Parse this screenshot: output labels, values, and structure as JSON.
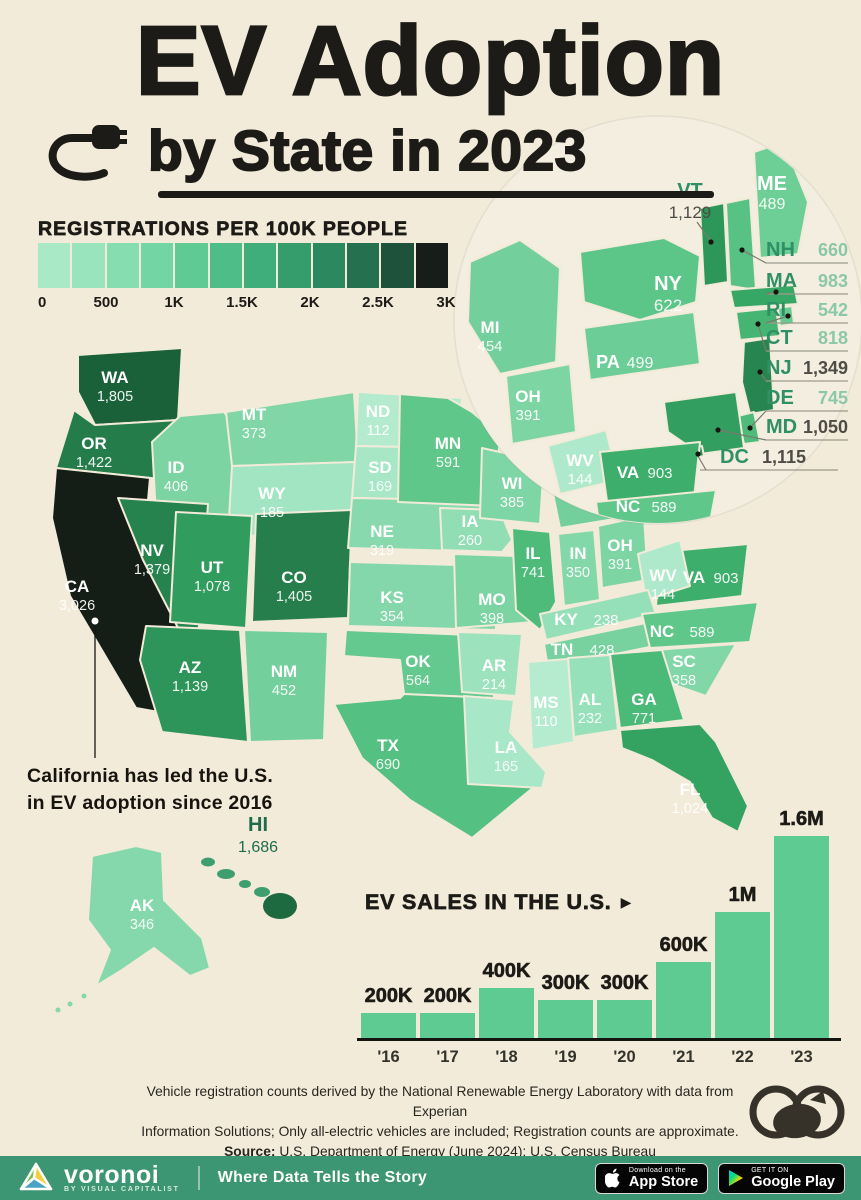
{
  "title": {
    "line1": "EV Adoption",
    "line2": "by State in 2023"
  },
  "legend": {
    "title": "REGISTRATIONS PER 100K PEOPLE",
    "ticks": [
      "0",
      "500",
      "1K",
      "1.5K",
      "2K",
      "2.5K",
      "3K"
    ],
    "colors": [
      "#a9e9c6",
      "#99e4bd",
      "#86ddb0",
      "#72d5a3",
      "#5fca94",
      "#4ebd87",
      "#40ae7a",
      "#359c6c",
      "#2c885e",
      "#25704e",
      "#1e523b",
      "#171e1a"
    ]
  },
  "states": {
    "WA": {
      "abbr": "WA",
      "value": "1,805",
      "color": "#1a6038"
    },
    "OR": {
      "abbr": "OR",
      "value": "1,422",
      "color": "#247c4b"
    },
    "CA": {
      "abbr": "CA",
      "value": "3,026",
      "color": "#151d17"
    },
    "NV": {
      "abbr": "NV",
      "value": "1,379",
      "color": "#26834e"
    },
    "ID": {
      "abbr": "ID",
      "value": "406",
      "color": "#7bd4a2"
    },
    "MT": {
      "abbr": "MT",
      "value": "373",
      "color": "#80d6a7"
    },
    "WY": {
      "abbr": "WY",
      "value": "185",
      "color": "#a2e5c2"
    },
    "UT": {
      "abbr": "UT",
      "value": "1,078",
      "color": "#309c5e"
    },
    "CO": {
      "abbr": "CO",
      "value": "1,405",
      "color": "#257e4c"
    },
    "AZ": {
      "abbr": "AZ",
      "value": "1,139",
      "color": "#2d9559"
    },
    "NM": {
      "abbr": "NM",
      "value": "452",
      "color": "#73d09c"
    },
    "ND": {
      "abbr": "ND",
      "value": "112",
      "color": "#b4ebcf"
    },
    "SD": {
      "abbr": "SD",
      "value": "169",
      "color": "#a7e7c6"
    },
    "NE": {
      "abbr": "NE",
      "value": "319",
      "color": "#88daae"
    },
    "KS": {
      "abbr": "KS",
      "value": "354",
      "color": "#83d7aa"
    },
    "OK": {
      "abbr": "OK",
      "value": "564",
      "color": "#63c98e"
    },
    "TX": {
      "abbr": "TX",
      "value": "690",
      "color": "#54c081"
    },
    "MN": {
      "abbr": "MN",
      "value": "591",
      "color": "#60c78b"
    },
    "IA": {
      "abbr": "IA",
      "value": "260",
      "color": "#91deb5"
    },
    "MO": {
      "abbr": "MO",
      "value": "398",
      "color": "#7cd4a3"
    },
    "AR": {
      "abbr": "AR",
      "value": "214",
      "color": "#9be2bd"
    },
    "LA": {
      "abbr": "LA",
      "value": "165",
      "color": "#a8e7c7"
    },
    "WI": {
      "abbr": "WI",
      "value": "385",
      "color": "#7ed5a5"
    },
    "IL": {
      "abbr": "IL",
      "value": "741",
      "color": "#4ebb7b"
    },
    "IN": {
      "abbr": "IN",
      "value": "350",
      "color": "#83d8aa"
    },
    "MI": {
      "abbr": "MI",
      "value": "454",
      "color": "#73d09c"
    },
    "OH": {
      "abbr": "OH",
      "value": "391",
      "color": "#7dd5a4"
    },
    "KY": {
      "abbr": "KY",
      "value": "238",
      "color": "#96e0b9"
    },
    "TN": {
      "abbr": "TN",
      "value": "428",
      "color": "#77d29f"
    },
    "WV": {
      "abbr": "WV",
      "value": "144",
      "color": "#afe9cb"
    },
    "VA": {
      "abbr": "VA",
      "value": "903",
      "color": "#3eae6c"
    },
    "NC": {
      "abbr": "NC",
      "value": "589",
      "color": "#60c78b"
    },
    "SC": {
      "abbr": "SC",
      "value": "358",
      "color": "#82d7a9"
    },
    "GA": {
      "abbr": "GA",
      "value": "771",
      "color": "#4bb978"
    },
    "AL": {
      "abbr": "AL",
      "value": "232",
      "color": "#97e1ba"
    },
    "MS": {
      "abbr": "MS",
      "value": "110",
      "color": "#b5ecd0"
    },
    "FL": {
      "abbr": "FL",
      "value": "1,024",
      "color": "#34a362"
    },
    "PA": {
      "abbr": "PA",
      "value": "499",
      "color": "#6ccd96"
    },
    "NY": {
      "abbr": "NY",
      "value": "622",
      "color": "#5cc588"
    },
    "VT": {
      "abbr": "VT",
      "value": "1,129",
      "color": "#2d9659"
    },
    "NH": {
      "abbr": "NH",
      "value": "660",
      "color": "#58c284"
    },
    "ME": {
      "abbr": "ME",
      "value": "489",
      "color": "#6dce96"
    },
    "MA": {
      "abbr": "MA",
      "value": "983",
      "color": "#37a765"
    },
    "RI": {
      "abbr": "RI",
      "value": "542",
      "color": "#66ca91"
    },
    "CT": {
      "abbr": "CT",
      "value": "818",
      "color": "#46b574"
    },
    "NJ": {
      "abbr": "NJ",
      "value": "1,349",
      "color": "#27854f"
    },
    "DE": {
      "abbr": "DE",
      "value": "745",
      "color": "#4ebb7b"
    },
    "MD": {
      "abbr": "MD",
      "value": "1,050",
      "color": "#329f60"
    },
    "DC": {
      "abbr": "DC",
      "value": "1,115",
      "color": "#2e975b"
    },
    "AK": {
      "abbr": "AK",
      "value": "346",
      "color": "#84d8ab"
    },
    "HI": {
      "abbr": "HI",
      "value": "1,686",
      "color": "#1d6940"
    }
  },
  "annotation": {
    "line1": "California has led the U.S.",
    "line2": "in EV adoption since 2016"
  },
  "chart": {
    "title": "EV SALES IN THE U.S.",
    "arrow": "▶",
    "bar_color": "#5ecb92",
    "bars": [
      {
        "year": "'16",
        "label": "200K",
        "value": 200000
      },
      {
        "year": "'17",
        "label": "200K",
        "value": 200000
      },
      {
        "year": "'18",
        "label": "400K",
        "value": 400000
      },
      {
        "year": "'19",
        "label": "300K",
        "value": 300000
      },
      {
        "year": "'20",
        "label": "300K",
        "value": 300000
      },
      {
        "year": "'21",
        "label": "600K",
        "value": 600000
      },
      {
        "year": "'22",
        "label": "1M",
        "value": 1000000
      },
      {
        "year": "'23",
        "label": "1.6M",
        "value": 1600000
      }
    ]
  },
  "chart_data": [
    {
      "type": "heatmap",
      "subtype": "us_state_choropleth",
      "title": "EV Adoption by State in 2023",
      "unit": "EV registrations per 100K people",
      "scale": {
        "min": 0,
        "max": 3000,
        "tick_labels": [
          "0",
          "500",
          "1K",
          "1.5K",
          "2K",
          "2.5K",
          "3K"
        ]
      },
      "values": {
        "WA": 1805,
        "OR": 1422,
        "CA": 3026,
        "NV": 1379,
        "ID": 406,
        "MT": 373,
        "WY": 185,
        "UT": 1078,
        "CO": 1405,
        "AZ": 1139,
        "NM": 452,
        "ND": 112,
        "SD": 169,
        "NE": 319,
        "KS": 354,
        "OK": 564,
        "TX": 690,
        "MN": 591,
        "IA": 260,
        "MO": 398,
        "AR": 214,
        "LA": 165,
        "WI": 385,
        "IL": 741,
        "IN": 350,
        "MI": 454,
        "OH": 391,
        "KY": 238,
        "TN": 428,
        "WV": 144,
        "VA": 903,
        "NC": 589,
        "SC": 358,
        "GA": 771,
        "AL": 232,
        "MS": 110,
        "FL": 1024,
        "PA": 499,
        "NY": 622,
        "VT": 1129,
        "NH": 660,
        "ME": 489,
        "MA": 983,
        "RI": 542,
        "CT": 818,
        "NJ": 1349,
        "DE": 745,
        "MD": 1050,
        "DC": 1115,
        "AK": 346,
        "HI": 1686
      }
    },
    {
      "type": "bar",
      "title": "EV SALES IN THE U.S.",
      "categories": [
        "'16",
        "'17",
        "'18",
        "'19",
        "'20",
        "'21",
        "'22",
        "'23"
      ],
      "values": [
        200000,
        200000,
        400000,
        300000,
        300000,
        600000,
        1000000,
        1600000
      ],
      "labels": [
        "200K",
        "200K",
        "400K",
        "300K",
        "300K",
        "600K",
        "1M",
        "1.6M"
      ],
      "xlabel": "",
      "ylabel": "",
      "ylim": [
        0,
        1600000
      ],
      "grid": false,
      "legend_position": "none"
    }
  ],
  "footer": {
    "line1": "Vehicle registration counts derived by the National Renewable Energy Laboratory with data from Experian",
    "line2": "Information Solutions; Only all-electric vehicles are included; Registration counts are approximate.",
    "source_label": "Source:",
    "source_text": "U.S. Department of Energy (June 2024); U.S. Census Bureau"
  },
  "brandbar": {
    "bg": "#3d9673",
    "brand": "voronoi",
    "sub": "BY VISUAL CAPITALIST",
    "tagline": "Where Data Tells the Story",
    "appstore_line1": "Download on the",
    "appstore_line2": "App Store",
    "gplay_line1": "GET IT ON",
    "gplay_line2": "Google Play"
  }
}
